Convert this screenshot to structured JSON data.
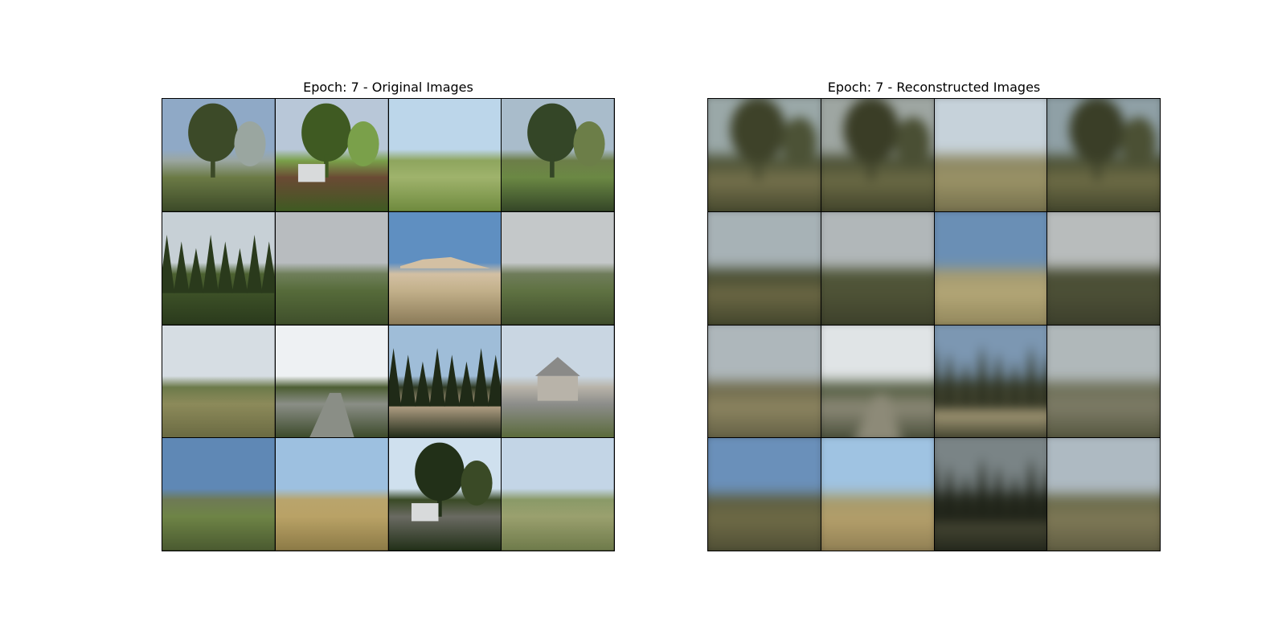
{
  "panels": [
    {
      "title": "Epoch: 7 - Original Images",
      "kind": "original",
      "tiles": [
        {
          "sky": "#8fa9c6",
          "hor": "#9aa6a0",
          "gnd": "#6b7a45",
          "dark": "#3c4a28",
          "feat": "trees"
        },
        {
          "sky": "#b8c7d8",
          "hor": "#7aa04a",
          "gnd": "#6a4a34",
          "dark": "#3f5a22",
          "feat": "tree-house"
        },
        {
          "sky": "#bcd6ea",
          "hor": "#8ea55e",
          "gnd": "#9fb36c",
          "dark": "#6f8a3e",
          "feat": "field"
        },
        {
          "sky": "#a9bccb",
          "hor": "#6c7e48",
          "gnd": "#6b8844",
          "dark": "#344627",
          "feat": "trees"
        },
        {
          "sky": "#c7d0d6",
          "hor": "#4d6231",
          "gnd": "#3e5228",
          "dark": "#2a3a1c",
          "feat": "forest"
        },
        {
          "sky": "#b8bcbf",
          "hor": "#6f7f5a",
          "gnd": "#566b3a",
          "dark": "#3f4f2b",
          "feat": "field"
        },
        {
          "sky": "#5f8fc1",
          "hor": "#d3c0a3",
          "gnd": "#c2b08a",
          "dark": "#8a7a58",
          "feat": "mesa"
        },
        {
          "sky": "#c4c8c9",
          "hor": "#6f7c5a",
          "gnd": "#5f7242",
          "dark": "#3f4d2c",
          "feat": "field"
        },
        {
          "sky": "#d6dde3",
          "hor": "#6c7a4a",
          "gnd": "#8c8a5a",
          "dark": "#6a6a42",
          "feat": "field"
        },
        {
          "sky": "#eef1f3",
          "hor": "#4d5e34",
          "gnd": "#8a8e86",
          "dark": "#3c4a2a",
          "feat": "road"
        },
        {
          "sky": "#9fbdd8",
          "hor": "#2e3a22",
          "gnd": "#b9a58a",
          "dark": "#1f2a17",
          "feat": "forest"
        },
        {
          "sky": "#c9d6e2",
          "hor": "#b8b3a9",
          "gnd": "#8c8d8a",
          "dark": "#5a6a3a",
          "feat": "house"
        },
        {
          "sky": "#5f88b5",
          "hor": "#6e7a55",
          "gnd": "#6e8446",
          "dark": "#4a5a30",
          "feat": "field"
        },
        {
          "sky": "#9dc0e0",
          "hor": "#b9a46c",
          "gnd": "#b9a266",
          "dark": "#8c7a46",
          "feat": "field"
        },
        {
          "sky": "#cfe0ee",
          "hor": "#3a4a26",
          "gnd": "#6a6a62",
          "dark": "#223018",
          "feat": "tree-house"
        },
        {
          "sky": "#c3d5e6",
          "hor": "#8a9a68",
          "gnd": "#9aa06e",
          "dark": "#6e7a4a",
          "feat": "field"
        }
      ]
    },
    {
      "title": "Epoch: 7 - Reconstructed Images",
      "kind": "recon",
      "tiles": [
        {
          "sky": "#9aa8a8",
          "hor": "#4c5236",
          "gnd": "#75714c",
          "dark": "#3e4229",
          "feat": "trees"
        },
        {
          "sky": "#9ea6a2",
          "hor": "#4a4f34",
          "gnd": "#6b6a45",
          "dark": "#3a3d26",
          "feat": "trees"
        },
        {
          "sky": "#c6d2da",
          "hor": "#8c8762",
          "gnd": "#9a9266",
          "dark": "#6e6a48",
          "feat": "field"
        },
        {
          "sky": "#8fa0a6",
          "hor": "#4b5034",
          "gnd": "#6e6c46",
          "dark": "#3a3e27",
          "feat": "trees"
        },
        {
          "sky": "#a7b2b6",
          "hor": "#474c31",
          "gnd": "#6b6744",
          "dark": "#3c4028",
          "feat": "field"
        },
        {
          "sky": "#b1b7b9",
          "hor": "#4f5538",
          "gnd": "#4e5236",
          "dark": "#3a3d29",
          "feat": "field"
        },
        {
          "sky": "#6a8fb5",
          "hor": "#a49a70",
          "gnd": "#b3a676",
          "dark": "#8c8258",
          "feat": "field"
        },
        {
          "sky": "#b8bcbc",
          "hor": "#4a4e35",
          "gnd": "#4c4f36",
          "dark": "#393c2a",
          "feat": "field"
        },
        {
          "sky": "#aeb7bb",
          "hor": "#6e6a4c",
          "gnd": "#8c8460",
          "dark": "#5c5a40",
          "feat": "field"
        },
        {
          "sky": "#e0e4e6",
          "hor": "#505a3e",
          "gnd": "#8d8a78",
          "dark": "#3e4530",
          "feat": "road"
        },
        {
          "sky": "#7c97b2",
          "hor": "#3a3f2a",
          "gnd": "#bcae88",
          "dark": "#2e3221",
          "feat": "forest"
        },
        {
          "sky": "#b0b8ba",
          "hor": "#6e7058",
          "gnd": "#7d7b66",
          "dark": "#4e5038",
          "feat": "field"
        },
        {
          "sky": "#6a90ba",
          "hor": "#5e5e40",
          "gnd": "#6e6a46",
          "dark": "#4a4a32",
          "feat": "field"
        },
        {
          "sky": "#9fc3e2",
          "hor": "#a69a6a",
          "gnd": "#b39e6a",
          "dark": "#8a7a50",
          "feat": "field"
        },
        {
          "sky": "#7a8486",
          "hor": "#2a2e20",
          "gnd": "#4a4a36",
          "dark": "#1e2218",
          "feat": "forest"
        },
        {
          "sky": "#aebac2",
          "hor": "#6a6a4a",
          "gnd": "#7e7856",
          "dark": "#5a583e",
          "feat": "field"
        }
      ]
    }
  ]
}
